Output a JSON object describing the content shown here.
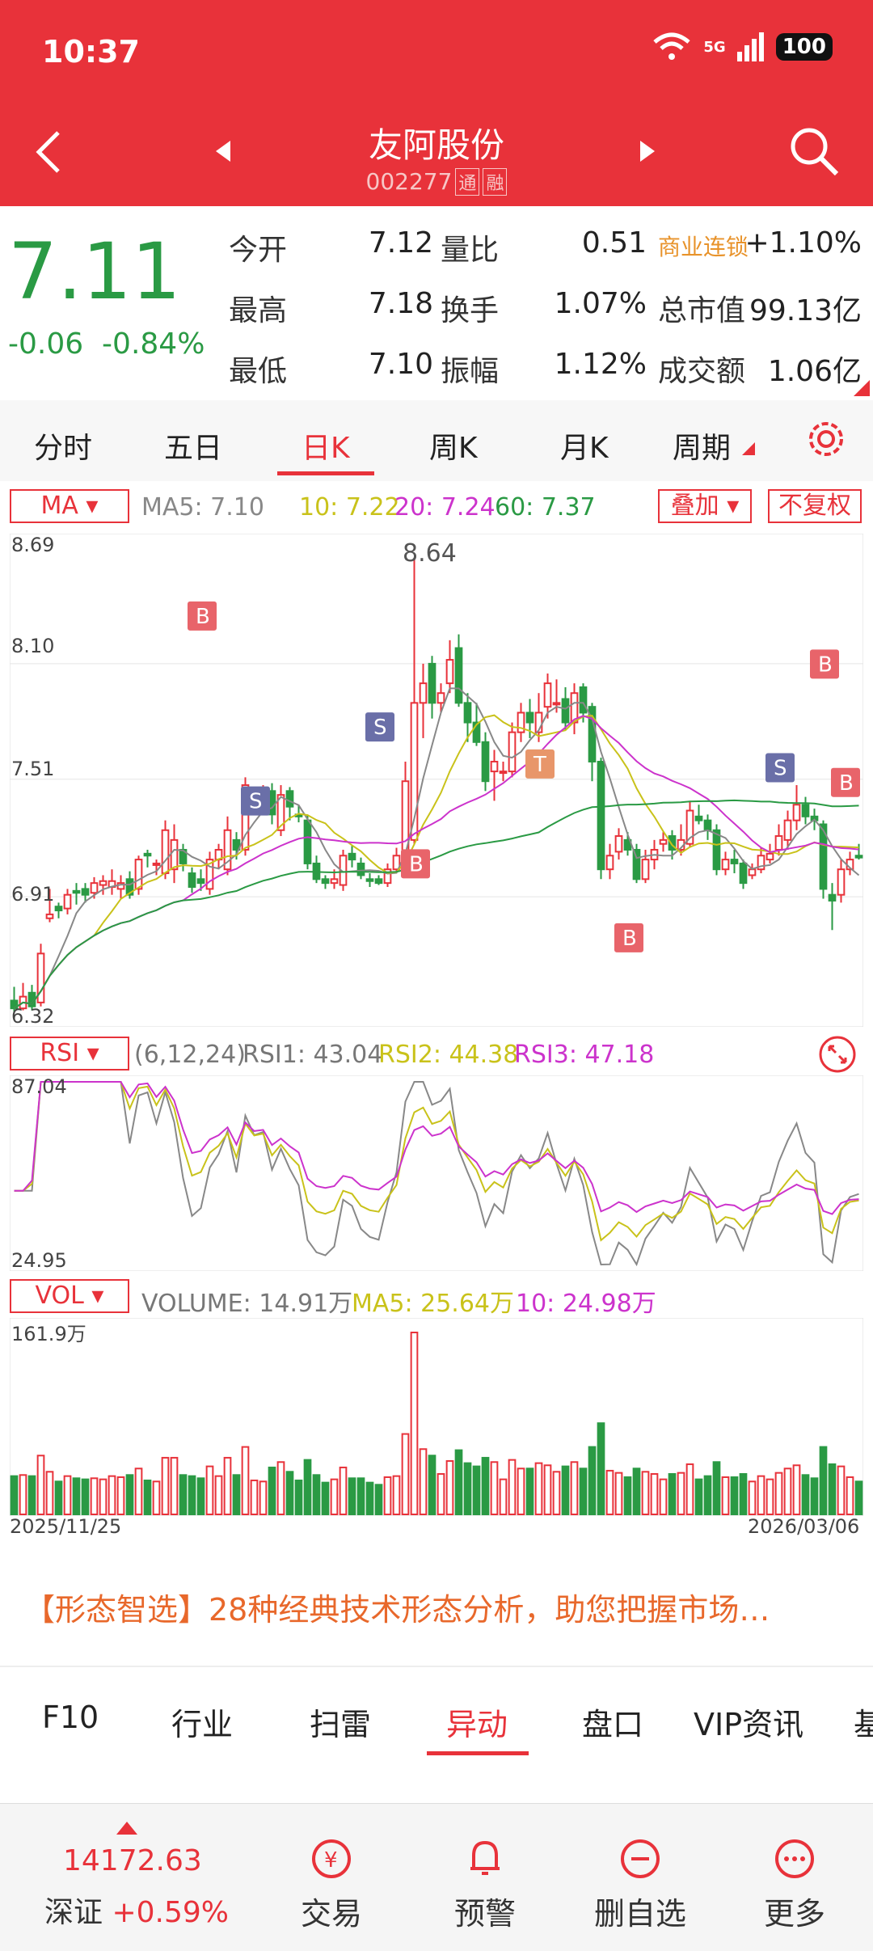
{
  "status": {
    "time": "10:37",
    "network": "5G",
    "battery": "100"
  },
  "header": {
    "stock_name": "友阿股份",
    "stock_code": "002277",
    "tag1": "通",
    "tag2": "融"
  },
  "quote": {
    "price": "7.11",
    "change": "-0.06",
    "change_pct": "-0.84%",
    "open_label": "今开",
    "open": "7.12",
    "high_label": "最高",
    "high": "7.18",
    "low_label": "最低",
    "low": "7.10",
    "volratio_label": "量比",
    "volratio": "0.51",
    "turnover_label": "换手",
    "turnover": "1.07%",
    "amplitude_label": "振幅",
    "amplitude": "1.12%",
    "sector": "商业连锁",
    "sector_chg": "+1.10%",
    "mktcap_label": "总市值",
    "mktcap": "99.13亿",
    "amount_label": "成交额",
    "amount": "1.06亿"
  },
  "tabs": [
    "分时",
    "五日",
    "日K",
    "周K",
    "月K",
    "周期"
  ],
  "active_tab": "日K",
  "kline": {
    "ma_button": "MA",
    "overlay_button": "叠加",
    "fq_button": "不复权",
    "ma5": "MA5: 7.10",
    "ma10": "10: 7.22",
    "ma20": "20: 7.24",
    "ma60": "60: 7.37",
    "y_labels": [
      "8.69",
      "8.10",
      "7.51",
      "6.91",
      "6.32"
    ],
    "high_mark": "8.64",
    "colors": {
      "up": "#e8323a",
      "down": "#2a9a44",
      "ma5": "#888888",
      "ma10": "#c9c21a",
      "ma20": "#cc33cc",
      "ma60": "#2a9a44"
    }
  },
  "rsi": {
    "button": "RSI",
    "params": "(6,12,24)",
    "rsi1": "RSI1: 43.04",
    "rsi2": "RSI2: 44.38",
    "rsi3": "RSI3: 47.18",
    "top": "87.04",
    "bottom": "24.95"
  },
  "vol": {
    "button": "VOL",
    "volume": "VOLUME: 14.91万",
    "ma5": "MA5: 25.64万",
    "ma10": "10: 24.98万",
    "top": "161.9万",
    "start_date": "2025/11/25",
    "end_date": "2026/03/06"
  },
  "chart_data": {
    "type": "candlestick",
    "ylim": [
      6.32,
      8.69
    ],
    "candles": [
      [
        6.38,
        6.34,
        6.45,
        6.32
      ],
      [
        6.34,
        6.4,
        6.47,
        6.33
      ],
      [
        6.42,
        6.35,
        6.46,
        6.33
      ],
      [
        6.37,
        6.62,
        6.67,
        6.35
      ],
      [
        6.8,
        6.82,
        6.95,
        6.78
      ],
      [
        6.86,
        6.84,
        6.88,
        6.8
      ],
      [
        6.85,
        6.92,
        6.95,
        6.82
      ],
      [
        6.94,
        6.93,
        6.98,
        6.87
      ],
      [
        6.95,
        6.92,
        6.98,
        6.88
      ],
      [
        6.93,
        6.98,
        7.01,
        6.9
      ],
      [
        6.97,
        6.99,
        7.02,
        6.92
      ],
      [
        6.96,
        6.99,
        7.05,
        6.92
      ],
      [
        6.95,
        6.98,
        7.02,
        6.9
      ],
      [
        7.0,
        6.92,
        7.04,
        6.9
      ],
      [
        6.95,
        7.1,
        7.12,
        6.92
      ],
      [
        7.13,
        7.12,
        7.15,
        7.06
      ],
      [
        7.08,
        7.08,
        7.1,
        7.02
      ],
      [
        7.03,
        7.25,
        7.3,
        7.0
      ],
      [
        7.05,
        7.2,
        7.28,
        6.98
      ],
      [
        7.15,
        7.08,
        7.18,
        7.04
      ],
      [
        7.03,
        6.96,
        7.06,
        6.93
      ],
      [
        7.0,
        6.98,
        7.05,
        6.94
      ],
      [
        6.95,
        7.1,
        7.14,
        6.92
      ],
      [
        7.1,
        7.15,
        7.18,
        7.05
      ],
      [
        7.05,
        7.25,
        7.32,
        7.02
      ],
      [
        7.2,
        7.15,
        7.24,
        7.1
      ],
      [
        7.15,
        7.48,
        7.52,
        7.12
      ],
      [
        7.42,
        7.42,
        7.46,
        7.37
      ],
      [
        7.42,
        7.44,
        7.48,
        7.4
      ],
      [
        7.45,
        7.33,
        7.49,
        7.28
      ],
      [
        7.25,
        7.43,
        7.48,
        7.22
      ],
      [
        7.45,
        7.37,
        7.47,
        7.3
      ],
      [
        7.33,
        7.32,
        7.38,
        7.29
      ],
      [
        7.3,
        7.08,
        7.33,
        7.05
      ],
      [
        7.08,
        7.0,
        7.12,
        6.98
      ],
      [
        7.0,
        6.98,
        7.02,
        6.95
      ],
      [
        6.98,
        7.0,
        7.05,
        6.95
      ],
      [
        6.97,
        7.12,
        7.15,
        6.94
      ],
      [
        7.13,
        7.1,
        7.17,
        7.06
      ],
      [
        7.08,
        7.02,
        7.11,
        7.0
      ],
      [
        7.0,
        6.99,
        7.03,
        6.96
      ],
      [
        7.0,
        6.98,
        7.02,
        6.97
      ],
      [
        6.98,
        7.05,
        7.08,
        6.96
      ],
      [
        7.05,
        7.12,
        7.16,
        7.03
      ],
      [
        7.1,
        7.5,
        7.6,
        7.08
      ],
      [
        7.2,
        7.9,
        8.64,
        7.18
      ],
      [
        7.9,
        8.0,
        8.1,
        7.72
      ],
      [
        8.1,
        7.9,
        8.14,
        7.82
      ],
      [
        7.9,
        7.95,
        8.0,
        7.85
      ],
      [
        8.0,
        8.12,
        8.22,
        7.95
      ],
      [
        8.18,
        7.9,
        8.25,
        7.88
      ],
      [
        7.9,
        7.8,
        7.95,
        7.7
      ],
      [
        7.8,
        7.7,
        7.9,
        7.68
      ],
      [
        7.7,
        7.5,
        7.75,
        7.45
      ],
      [
        7.55,
        7.6,
        7.66,
        7.4
      ],
      [
        7.55,
        7.55,
        7.6,
        7.5
      ],
      [
        7.55,
        7.75,
        7.8,
        7.52
      ],
      [
        7.75,
        7.85,
        7.9,
        7.7
      ],
      [
        7.85,
        7.8,
        7.92,
        7.72
      ],
      [
        7.75,
        7.85,
        7.95,
        7.7
      ],
      [
        7.88,
        8.0,
        8.05,
        7.82
      ],
      [
        7.9,
        7.9,
        8.02,
        7.85
      ],
      [
        7.92,
        7.8,
        7.98,
        7.76
      ],
      [
        7.8,
        7.95,
        8.0,
        7.74
      ],
      [
        7.98,
        7.85,
        8.0,
        7.8
      ],
      [
        7.88,
        7.6,
        7.9,
        7.5
      ],
      [
        7.6,
        7.05,
        7.62,
        7.0
      ],
      [
        7.05,
        7.12,
        7.18,
        7.0
      ],
      [
        7.14,
        7.22,
        7.26,
        7.1
      ],
      [
        7.2,
        7.15,
        7.24,
        7.12
      ],
      [
        7.15,
        7.0,
        7.18,
        6.98
      ],
      [
        7.0,
        7.1,
        7.15,
        6.98
      ],
      [
        7.1,
        7.15,
        7.2,
        7.05
      ],
      [
        7.18,
        7.2,
        7.24,
        7.14
      ],
      [
        7.22,
        7.15,
        7.25,
        7.1
      ],
      [
        7.15,
        7.2,
        7.28,
        7.12
      ],
      [
        7.18,
        7.35,
        7.4,
        7.16
      ],
      [
        7.32,
        7.3,
        7.38,
        7.28
      ],
      [
        7.3,
        7.25,
        7.33,
        7.2
      ],
      [
        7.25,
        7.05,
        7.28,
        7.02
      ],
      [
        7.05,
        7.1,
        7.14,
        7.02
      ],
      [
        7.1,
        7.08,
        7.15,
        7.03
      ],
      [
        7.08,
        6.98,
        7.1,
        6.95
      ],
      [
        7.02,
        7.05,
        7.08,
        7.0
      ],
      [
        7.05,
        7.12,
        7.16,
        7.03
      ],
      [
        7.1,
        7.13,
        7.18,
        7.08
      ],
      [
        7.15,
        7.22,
        7.28,
        7.12
      ],
      [
        7.2,
        7.3,
        7.35,
        7.15
      ],
      [
        7.3,
        7.38,
        7.48,
        7.25
      ],
      [
        7.38,
        7.32,
        7.42,
        7.28
      ],
      [
        7.32,
        7.3,
        7.36,
        7.25
      ],
      [
        7.28,
        6.95,
        7.3,
        6.9
      ],
      [
        6.92,
        6.89,
        6.98,
        6.74
      ],
      [
        6.92,
        7.05,
        7.1,
        6.88
      ],
      [
        7.05,
        7.1,
        7.14,
        7.02
      ],
      [
        7.12,
        7.11,
        7.18,
        7.1
      ]
    ],
    "rsi_range": [
      24.95,
      87.04
    ]
  }
}
